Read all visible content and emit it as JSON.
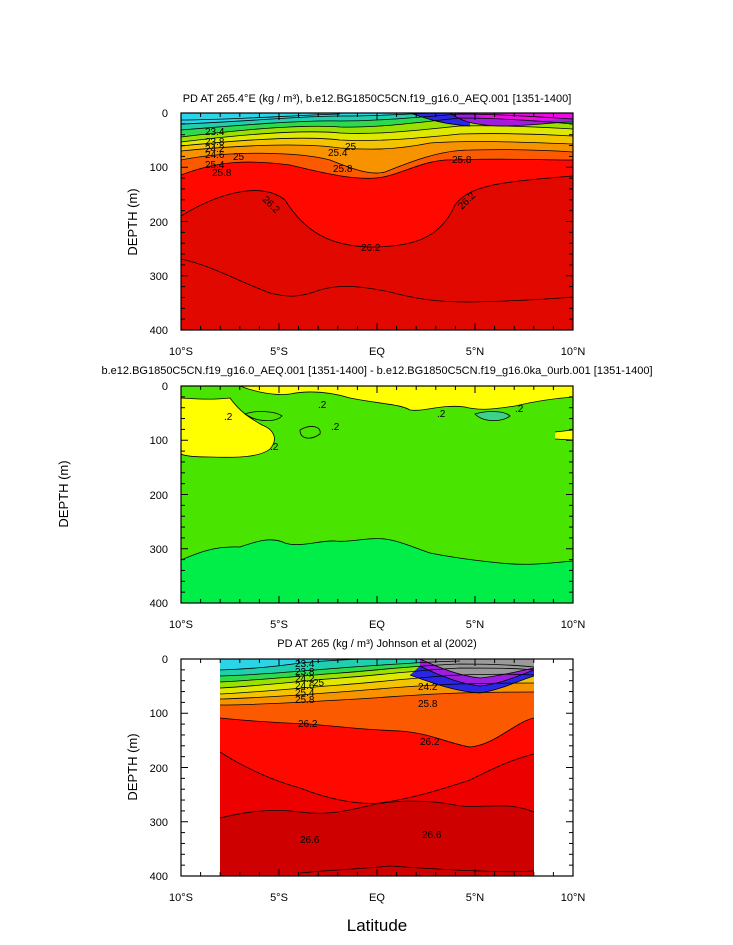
{
  "figure": {
    "xlabel": "Latitude",
    "shared_ylabel": "DEPTH (m)"
  },
  "chart_data": [
    {
      "type": "heatmap",
      "title": "PD AT 265.4°E (kg / m³), b.e12.BG1850C5CN.f19_g16.0_AEQ.001 [1351-1400]",
      "xlabel": "Latitude",
      "ylabel": "DEPTH (m)",
      "xlim": [
        -10,
        10
      ],
      "ylim": [
        400,
        0
      ],
      "x_ticks": [
        "10°S",
        "5°S",
        "EQ",
        "5°N",
        "10°N"
      ],
      "y_ticks": [
        "0",
        "100",
        "200",
        "300",
        "400"
      ],
      "contour_labels": [
        "23.4",
        "23.8",
        "24.2",
        "24.6",
        "25",
        "25.4",
        "25.8",
        "26.2",
        "26.2",
        "26.2",
        "25.4",
        "25.8",
        "25.8",
        "25"
      ],
      "contour_levels": [
        {
          "value": 23.4,
          "depth": [
            [
              -10,
              26
            ],
            [
              -5,
              28
            ],
            [
              -2,
              18
            ],
            [
              0,
              24
            ],
            [
              2,
              18
            ],
            [
              5,
              14
            ],
            [
              10,
              18
            ]
          ]
        },
        {
          "value": 23.8,
          "depth": [
            [
              -10,
              40
            ],
            [
              -5,
              45
            ],
            [
              -2,
              30
            ],
            [
              0,
              36
            ],
            [
              2,
              26
            ],
            [
              5,
              22
            ],
            [
              10,
              30
            ]
          ]
        },
        {
          "value": 24.2,
          "depth": [
            [
              -10,
              52
            ],
            [
              -5,
              57
            ],
            [
              -2,
              40
            ],
            [
              0,
              46
            ],
            [
              2,
              34
            ],
            [
              5,
              32
            ],
            [
              10,
              40
            ]
          ]
        },
        {
          "value": 24.6,
          "depth": [
            [
              -10,
              63
            ],
            [
              -5,
              67
            ],
            [
              -2,
              49
            ],
            [
              0,
              55
            ],
            [
              2,
              43
            ],
            [
              5,
              42
            ],
            [
              10,
              50
            ]
          ]
        },
        {
          "value": 25.0,
          "depth": [
            [
              -10,
              75
            ],
            [
              -5,
              77
            ],
            [
              -2,
              58
            ],
            [
              0,
              62
            ],
            [
              2,
              53
            ],
            [
              5,
              53
            ],
            [
              10,
              60
            ]
          ]
        },
        {
          "value": 25.4,
          "depth": [
            [
              -10,
              90
            ],
            [
              -5,
              88
            ],
            [
              -2,
              70
            ],
            [
              0,
              72
            ],
            [
              2,
              64
            ],
            [
              5,
              66
            ],
            [
              10,
              72
            ]
          ]
        },
        {
          "value": 25.8,
          "depth": [
            [
              -10,
              110
            ],
            [
              -5,
              104
            ],
            [
              -2,
              100
            ],
            [
              0,
              120
            ],
            [
              2,
              100
            ],
            [
              5,
              84
            ],
            [
              10,
              92
            ]
          ]
        },
        {
          "value": 26.2,
          "depth": [
            [
              -10,
              190
            ],
            [
              -6,
              150
            ],
            [
              -4,
              160
            ],
            [
              -2,
              240
            ],
            [
              0,
              252
            ],
            [
              2,
              245
            ],
            [
              4,
              180
            ],
            [
              6,
              138
            ],
            [
              10,
              130
            ]
          ]
        },
        {
          "value": 26.6,
          "depth": [
            [
              -10,
              270
            ],
            [
              -7,
              300
            ],
            [
              -4,
              340
            ],
            [
              -2,
              318
            ],
            [
              0,
              322
            ],
            [
              3,
              340
            ],
            [
              6,
              345
            ],
            [
              10,
              340
            ]
          ]
        }
      ]
    },
    {
      "type": "heatmap",
      "title": "b.e12.BG1850C5CN.f19_g16.0_AEQ.001 [1351-1400] - b.e12.BG1850C5CN.f19_g16.0ka_0urb.001 [1351-1400]",
      "xlabel": "Latitude",
      "ylabel": "DEPTH (m)",
      "xlim": [
        -10,
        10
      ],
      "ylim": [
        400,
        0
      ],
      "x_ticks": [
        "10°S",
        "5°S",
        "EQ",
        "5°N",
        "10°N"
      ],
      "y_ticks": [
        "0",
        "100",
        "200",
        "300",
        "400"
      ],
      "contour_labels": [
        ".2",
        ".2",
        ".2",
        ".2",
        ".2",
        ".2"
      ],
      "regions": [
        {
          "value": 0.2,
          "description": "near-surface positive difference (yellow), 0-120 m"
        },
        {
          "value": 0.0,
          "description": "interior (green), 120-300 m"
        },
        {
          "value": -0.2,
          "description": "deep layer (bright green), below ~300 m"
        }
      ]
    },
    {
      "type": "heatmap",
      "title": "PD AT 265 (kg / m³) Johnson et al (2002)",
      "xlabel": "Latitude",
      "ylabel": "DEPTH (m)",
      "xlim": [
        -10,
        10
      ],
      "ylim": [
        400,
        0
      ],
      "data_xlim": [
        -8,
        8
      ],
      "x_ticks": [
        "10°S",
        "5°S",
        "EQ",
        "5°N",
        "10°N"
      ],
      "y_ticks": [
        "0",
        "100",
        "200",
        "300",
        "400"
      ],
      "contour_labels": [
        "23.4",
        "23.8",
        "24.2",
        "24.6",
        "25",
        "25.4",
        "25.8",
        "26.2",
        "26.2",
        "26.6",
        "26.6",
        "25.8",
        "24.2"
      ],
      "contour_levels": [
        {
          "value": 23.4,
          "depth": [
            [
              -8,
              20
            ],
            [
              -4,
              22
            ],
            [
              0,
              12
            ],
            [
              4,
              6
            ],
            [
              8,
              4
            ]
          ]
        },
        {
          "value": 24.2,
          "depth": [
            [
              -8,
              40
            ],
            [
              -4,
              38
            ],
            [
              0,
              28
            ],
            [
              4,
              18
            ],
            [
              8,
              16
            ]
          ]
        },
        {
          "value": 25.0,
          "depth": [
            [
              -8,
              60
            ],
            [
              -4,
              55
            ],
            [
              0,
              45
            ],
            [
              4,
              36
            ],
            [
              8,
              34
            ]
          ]
        },
        {
          "value": 25.8,
          "depth": [
            [
              -8,
              82
            ],
            [
              -4,
              75
            ],
            [
              0,
              65
            ],
            [
              4,
              60
            ],
            [
              8,
              58
            ]
          ]
        },
        {
          "value": 26.2,
          "depth": [
            [
              -8,
              110
            ],
            [
              -4,
              115
            ],
            [
              0,
              128
            ],
            [
              4,
              160
            ],
            [
              8,
              108
            ]
          ]
        },
        {
          "value": 26.4,
          "depth": [
            [
              -8,
              170
            ],
            [
              -4,
              225
            ],
            [
              0,
              268
            ],
            [
              3,
              250
            ],
            [
              6,
              200
            ],
            [
              8,
              175
            ]
          ]
        },
        {
          "value": 26.6,
          "depth": [
            [
              -8,
              290
            ],
            [
              -4,
              320
            ],
            [
              0,
              312
            ],
            [
              3,
              295
            ],
            [
              5,
              310
            ],
            [
              8,
              285
            ]
          ]
        },
        {
          "value": 26.8,
          "depth": [
            [
              -8,
              400
            ],
            [
              -4,
              398
            ],
            [
              0,
              385
            ],
            [
              4,
              390
            ],
            [
              8,
              396
            ]
          ]
        }
      ]
    }
  ]
}
